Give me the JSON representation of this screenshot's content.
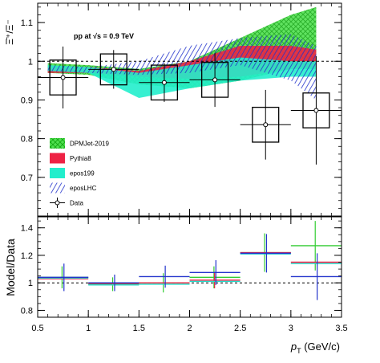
{
  "chart_data": {
    "type": "line",
    "annotation": "pp at √s = 0.9 TeV",
    "top_panel": {
      "ylabel": "Ξ̄⁺/Ξ⁻",
      "ylim": [
        0.6,
        1.15
      ],
      "yticks": [
        "0.7",
        "0.8",
        "0.9",
        "1",
        "1.1"
      ],
      "ytick_values": [
        0.7,
        0.8,
        0.9,
        1.0,
        1.1
      ],
      "reference_line": 1.0,
      "data": {
        "name": "Data",
        "x": [
          0.75,
          1.25,
          1.75,
          2.25,
          2.75,
          3.25
        ],
        "y": [
          0.958,
          0.979,
          0.945,
          0.952,
          0.836,
          0.873
        ],
        "x_err": [
          0.25,
          0.25,
          0.25,
          0.25,
          0.25,
          0.25
        ],
        "stat_err": [
          0.08,
          0.05,
          0.05,
          0.07,
          0.09,
          0.14
        ],
        "sys_err": [
          0.045,
          0.04,
          0.045,
          0.045,
          0.045,
          0.045
        ]
      },
      "models": [
        {
          "name": "DPMJet-2019",
          "color": "#22cc22",
          "pattern": "crosshatch",
          "x": [
            0.6,
            1.0,
            1.5,
            2.0,
            2.5,
            3.0,
            3.25
          ],
          "low": [
            0.97,
            0.965,
            0.94,
            0.93,
            0.95,
            0.98,
            0.98
          ],
          "high": [
            0.995,
            0.99,
            0.98,
            1.0,
            1.06,
            1.12,
            1.14
          ]
        },
        {
          "name": "Pythia8",
          "color": "#ee2244",
          "pattern": "solid",
          "x": [
            0.6,
            1.0,
            1.5,
            2.0,
            2.5,
            3.0,
            3.25
          ],
          "low": [
            0.97,
            0.97,
            0.96,
            0.955,
            0.96,
            0.98,
            0.985
          ],
          "high": [
            0.985,
            0.985,
            0.975,
            1.0,
            1.04,
            1.04,
            1.03
          ]
        },
        {
          "name": "epos199",
          "color": "#22eecc",
          "pattern": "solid",
          "x": [
            0.6,
            1.0,
            1.5,
            2.0,
            2.5,
            3.0,
            3.25
          ],
          "low": [
            0.975,
            0.97,
            0.905,
            0.93,
            0.95,
            0.96,
            0.96
          ],
          "high": [
            0.99,
            0.985,
            0.97,
            0.99,
            1.01,
            1.0,
            1.0
          ]
        },
        {
          "name": "eposLHC",
          "color": "#2233cc",
          "pattern": "hatch",
          "x": [
            0.6,
            1.0,
            1.5,
            2.0,
            2.5,
            3.0,
            3.25
          ],
          "low": [
            0.975,
            0.97,
            0.965,
            0.97,
            0.99,
            0.95,
            0.9
          ],
          "high": [
            0.99,
            0.985,
            1.0,
            1.04,
            1.06,
            1.07,
            1.04
          ]
        }
      ]
    },
    "bottom_panel": {
      "ylabel": "Model/Data",
      "ylim": [
        0.75,
        1.48
      ],
      "yticks": [
        "0.8",
        "1",
        "1.2",
        "1.4"
      ],
      "ytick_values": [
        0.8,
        1.0,
        1.2,
        1.4
      ],
      "reference_line": 1.0,
      "ratios": [
        {
          "name": "DPMJet-2019",
          "color": "#33cc33",
          "values": [
            1.04,
            0.99,
            1.0,
            1.04,
            1.22,
            1.27
          ],
          "errors": [
            0.08,
            0.05,
            0.07,
            0.08,
            0.14,
            0.18
          ]
        },
        {
          "name": "Pythia8",
          "color": "#ee2244",
          "values": [
            1.03,
            0.995,
            1.0,
            1.02,
            1.22,
            1.15
          ],
          "errors": [
            0.0,
            0.0,
            0.0,
            0.06,
            0.0,
            0.0
          ]
        },
        {
          "name": "epos199",
          "color": "#22ddcc",
          "values": [
            1.035,
            0.985,
            0.99,
            1.01,
            1.21,
            1.14
          ],
          "errors": [
            0.0,
            0.0,
            0.0,
            0.0,
            0.0,
            0.0
          ]
        },
        {
          "name": "eposLHC",
          "color": "#2233cc",
          "values": [
            1.04,
            1.0,
            1.045,
            1.075,
            1.215,
            1.045
          ],
          "errors": [
            0.1,
            0.06,
            0.08,
            0.09,
            0.14,
            0.17
          ]
        }
      ]
    },
    "x_axis": {
      "xlabel": "p_T (GeV/c)",
      "xlim": [
        0.5,
        3.5
      ],
      "xticks": [
        "0.5",
        "1",
        "1.5",
        "2",
        "2.5",
        "3",
        "3.5"
      ],
      "xtick_values": [
        0.5,
        1.0,
        1.5,
        2.0,
        2.5,
        3.0,
        3.5
      ]
    },
    "legend": {
      "placement": "bottom-left",
      "entries": [
        "DPMJet-2019",
        "Pythia8",
        "epos199",
        "eposLHC",
        "Data"
      ]
    }
  }
}
